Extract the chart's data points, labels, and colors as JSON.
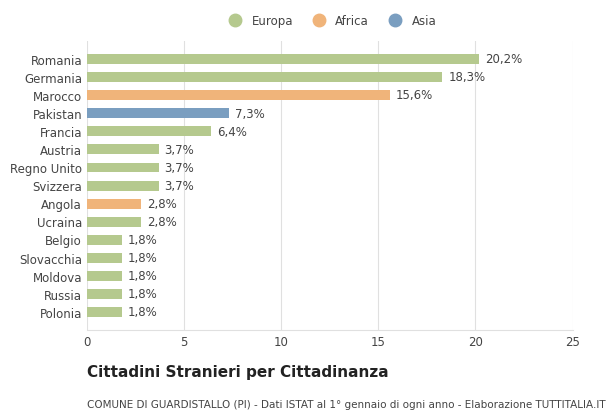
{
  "countries": [
    "Romania",
    "Germania",
    "Marocco",
    "Pakistan",
    "Francia",
    "Austria",
    "Regno Unito",
    "Svizzera",
    "Angola",
    "Ucraina",
    "Belgio",
    "Slovacchia",
    "Moldova",
    "Russia",
    "Polonia"
  ],
  "values": [
    20.2,
    18.3,
    15.6,
    7.3,
    6.4,
    3.7,
    3.7,
    3.7,
    2.8,
    2.8,
    1.8,
    1.8,
    1.8,
    1.8,
    1.8
  ],
  "labels": [
    "20,2%",
    "18,3%",
    "15,6%",
    "7,3%",
    "6,4%",
    "3,7%",
    "3,7%",
    "3,7%",
    "2,8%",
    "2,8%",
    "1,8%",
    "1,8%",
    "1,8%",
    "1,8%",
    "1,8%"
  ],
  "continents": [
    "Europa",
    "Europa",
    "Africa",
    "Asia",
    "Europa",
    "Europa",
    "Europa",
    "Europa",
    "Africa",
    "Europa",
    "Europa",
    "Europa",
    "Europa",
    "Europa",
    "Europa"
  ],
  "colors": {
    "Europa": "#b5c98e",
    "Africa": "#f0b47a",
    "Asia": "#7a9ec0"
  },
  "xlim": [
    0,
    25
  ],
  "xticks": [
    0,
    5,
    10,
    15,
    20,
    25
  ],
  "title": "Cittadini Stranieri per Cittadinanza",
  "subtitle": "COMUNE DI GUARDISTALLO (PI) - Dati ISTAT al 1° gennaio di ogni anno - Elaborazione TUTTITALIA.IT",
  "background_color": "#ffffff",
  "grid_color": "#e0e0e0",
  "bar_height": 0.55,
  "label_fontsize": 8.5,
  "tick_fontsize": 8.5,
  "title_fontsize": 11,
  "subtitle_fontsize": 7.5,
  "text_color": "#444444"
}
